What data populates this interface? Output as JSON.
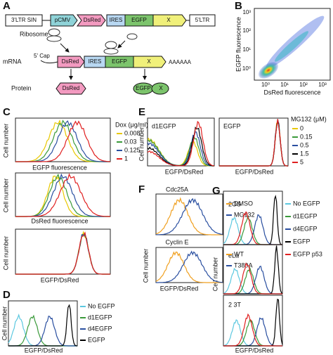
{
  "panel_a": {
    "label": "A",
    "construct": [
      "3'LTR SIN",
      "pCMV",
      "DsRed",
      "IRES",
      "EGFP",
      "X",
      "5'LTR"
    ],
    "ribosome": "Ribosome",
    "mrna": "mRNA",
    "cap": "5' Cap",
    "mrna_parts": [
      "DsRed",
      "IRES",
      "EGFP",
      "X"
    ],
    "poly_a": "AAAAAA",
    "protein": "Protein",
    "proteins": [
      "DsRed",
      "EGFP",
      "X"
    ]
  },
  "panel_b": {
    "label": "B",
    "y_label": "EGFP fluorescence",
    "x_label": "DsRed fluorescence",
    "yticks": [
      "10³",
      "10²",
      "10¹",
      "10⁰"
    ],
    "xticks": [
      "10⁰",
      "10¹",
      "10²",
      "10³"
    ]
  },
  "panel_c": {
    "label": "C",
    "legend_title": "Dox (μg/ml)",
    "legend": [
      "0.008",
      "0.03",
      "0.125",
      "1"
    ],
    "x_labels": [
      "EGFP fluorescence",
      "DsRed fluorescence",
      "EGFP/DsRed"
    ],
    "y_labels": [
      "Cell number",
      "Cell number",
      "Cell number"
    ]
  },
  "panel_d": {
    "label": "D",
    "legend": [
      "No EGFP",
      "d1EGFP",
      "d4EGFP",
      "EGFP"
    ],
    "x_label": "EGFP/DsRed",
    "y_label": "Cell number"
  },
  "panel_e": {
    "label": "E",
    "legend_title": "MG132 (μM)",
    "legend": [
      "0",
      "0.15",
      "0.5",
      "1.5",
      "5"
    ],
    "plot_titles": [
      "d1EGFP",
      "EGFP"
    ],
    "x_labels": [
      "EGFP/DsRed",
      "EGFP/DsRed"
    ],
    "y_label": "Cell number"
  },
  "panel_f": {
    "label": "F",
    "plot_titles": [
      "Cdc25A",
      "Cyclin E"
    ],
    "legends": [
      [
        "DMSO",
        "MG132"
      ],
      [
        "WT",
        "T380A"
      ]
    ],
    "x_label": "EGFP/DsRed",
    "y_label": "Cell number"
  },
  "panel_g": {
    "label": "G",
    "plot_titles": [
      "2OS",
      "eLa",
      "2 3T"
    ],
    "legend": [
      "No EGFP",
      "d1EGFP",
      "d4EGFP",
      "EGFP",
      "EGFP p53"
    ],
    "x_label": "EGFP/DsRed",
    "y_label": "Cell number"
  }
}
